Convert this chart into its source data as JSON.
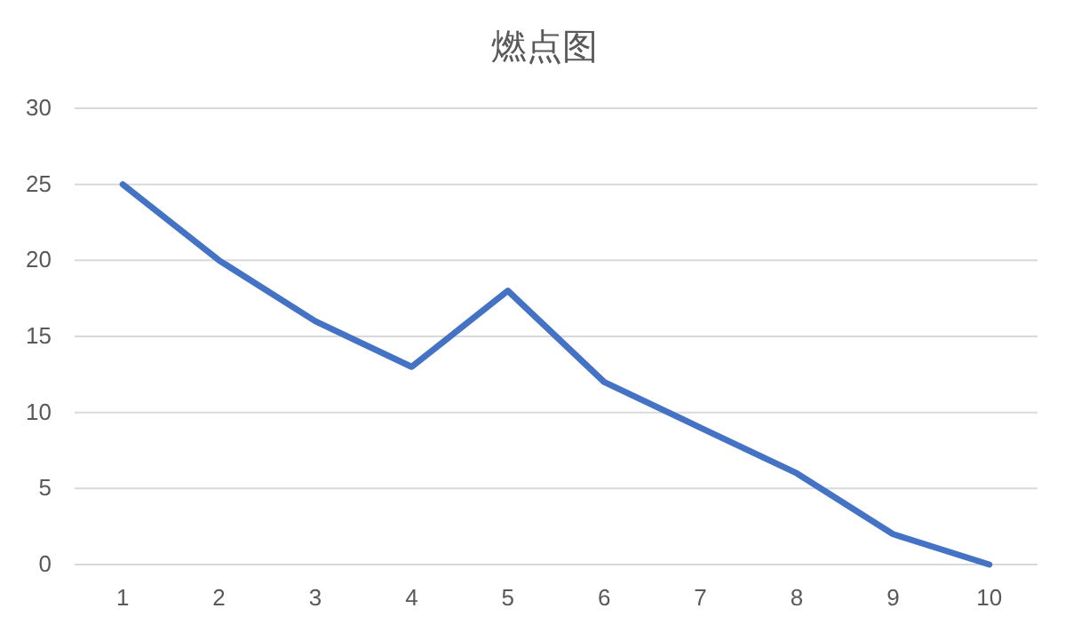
{
  "chart_data": {
    "type": "line",
    "title": "燃点图",
    "categories": [
      "1",
      "2",
      "3",
      "4",
      "5",
      "6",
      "7",
      "8",
      "9",
      "10"
    ],
    "series": [
      {
        "color": "#4472c4",
        "values": [
          25,
          20,
          16,
          13,
          18,
          12,
          9,
          6,
          2,
          0
        ]
      }
    ],
    "ylim": [
      0,
      30
    ],
    "yticks": [
      0,
      5,
      10,
      15,
      20,
      25,
      30
    ],
    "grid": "y"
  }
}
